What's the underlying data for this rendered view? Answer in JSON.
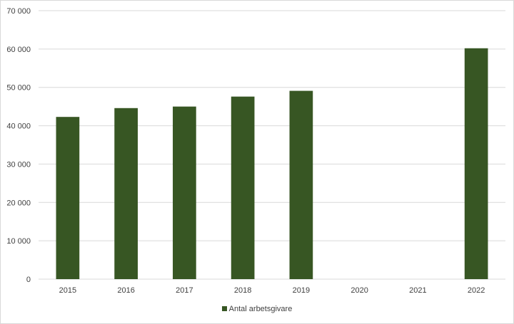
{
  "chart_data": {
    "type": "bar",
    "categories": [
      "2015",
      "2016",
      "2017",
      "2018",
      "2019",
      "2020",
      "2021",
      "2022"
    ],
    "series": [
      {
        "name": "Antal arbetsgivare",
        "values": [
          42300,
          44600,
          45000,
          47600,
          49100,
          null,
          null,
          60200
        ],
        "color": "#375623"
      }
    ],
    "ylim": [
      0,
      70000
    ],
    "yticks": [
      "0",
      "10 000",
      "20 000",
      "30 000",
      "40 000",
      "50 000",
      "60 000",
      "70 000"
    ],
    "ytick_values": [
      0,
      10000,
      20000,
      30000,
      40000,
      50000,
      60000,
      70000
    ],
    "grid": true,
    "gridline_color": "#d9d9d9",
    "legend_position": "bottom",
    "title": "",
    "xlabel": "",
    "ylabel": ""
  }
}
